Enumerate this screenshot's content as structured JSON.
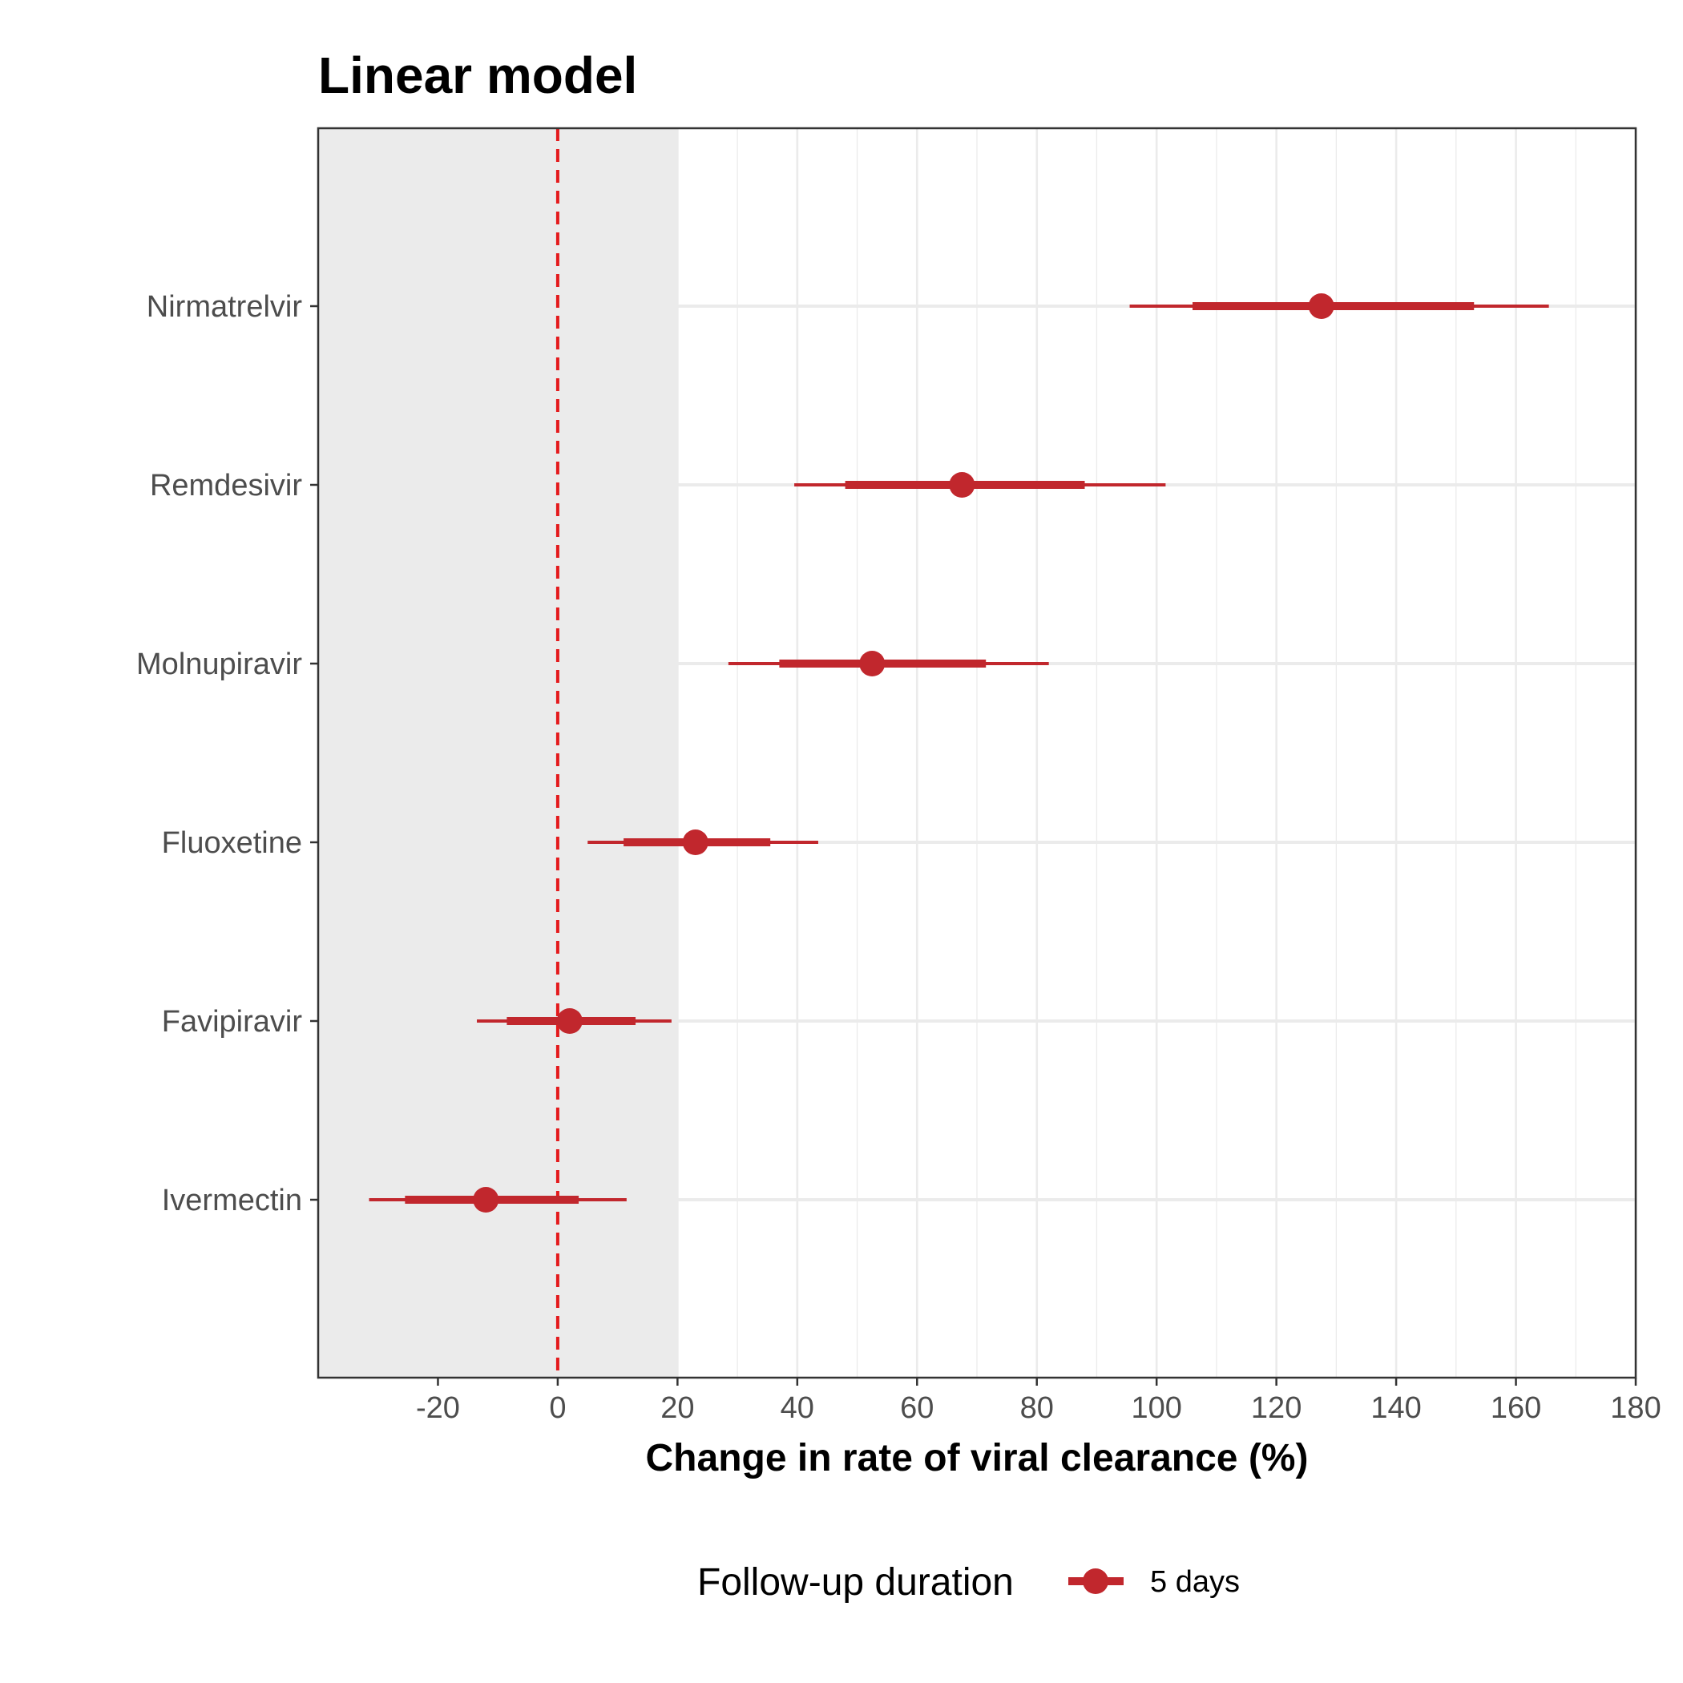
{
  "chart_data": {
    "type": "forest",
    "title": "Linear model",
    "xlabel": "Change in rate of viral clearance (%)",
    "ylabel": "",
    "xlim": [
      -40,
      180
    ],
    "x_ticks": [
      -20,
      0,
      20,
      40,
      60,
      80,
      100,
      120,
      140,
      160,
      180
    ],
    "x_tick_labels": [
      "-20",
      "0",
      "20",
      "40",
      "60",
      "80",
      "100",
      "120",
      "140",
      "160",
      "180"
    ],
    "reference_line": 0,
    "shaded_region": [
      -40,
      20
    ],
    "grid": true,
    "categories": [
      "Nirmatrelvir",
      "Remdesivir",
      "Molnupiravir",
      "Fluoxetine",
      "Favipiravir",
      "Ivermectin"
    ],
    "series": [
      {
        "name": "5 days",
        "color": "#c1272d",
        "estimate": [
          127.5,
          67.5,
          52.5,
          23,
          2,
          -12
        ],
        "inner_lower": [
          106,
          48,
          37,
          11,
          -8.5,
          -25.5
        ],
        "inner_upper": [
          153,
          88,
          71.5,
          35.5,
          13,
          3.5
        ],
        "outer_lower": [
          95.5,
          39.5,
          28.5,
          5,
          -13.5,
          -31.5
        ],
        "outer_upper": [
          165.5,
          101.5,
          82,
          43.5,
          19,
          11.5
        ]
      }
    ],
    "legend": {
      "title": "Follow-up duration",
      "position": "bottom",
      "labels": [
        "5 days"
      ]
    }
  }
}
